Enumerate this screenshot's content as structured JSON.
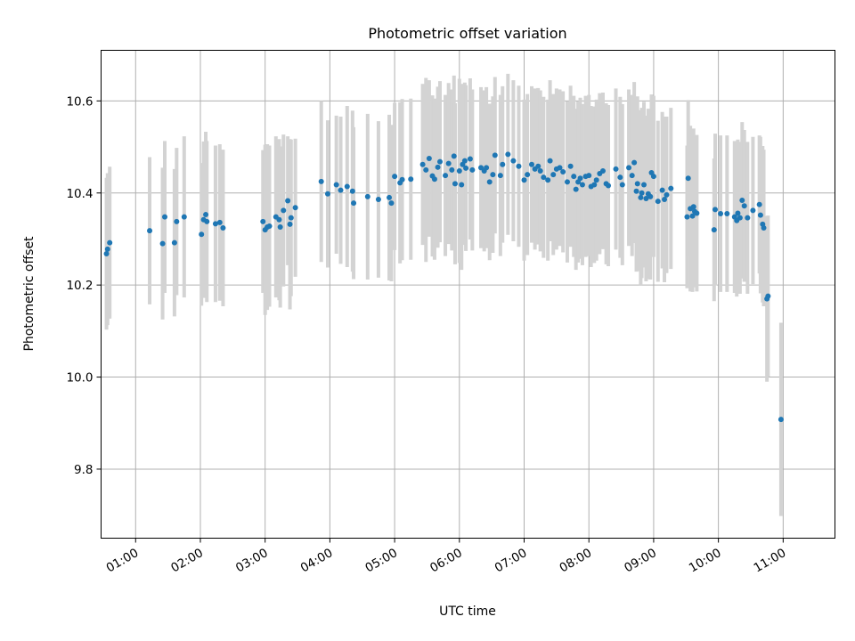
{
  "chart_data": {
    "type": "scatter",
    "title": "Photometric offset variation",
    "xlabel": "UTC time",
    "ylabel": "Photometric offset",
    "x_unit": "UTC hour",
    "xlim": [
      "00:28",
      "11:48"
    ],
    "ylim": [
      9.65,
      10.71
    ],
    "grid": true,
    "x_ticks": [
      "01:00",
      "02:00",
      "03:00",
      "04:00",
      "05:00",
      "06:00",
      "07:00",
      "08:00",
      "09:00",
      "10:00",
      "11:00"
    ],
    "y_ticks": [
      "9.8",
      "10.0",
      "10.2",
      "10.4",
      "10.6"
    ],
    "colors": {
      "point": "#1f77b4",
      "error_bar": "#d3d3d3",
      "grid": "#b0b0b0"
    },
    "points": [
      [
        "00:33",
        10.268,
        0.165
      ],
      [
        "00:34",
        10.278,
        0.165
      ],
      [
        "00:36",
        10.292,
        0.165
      ],
      [
        "01:13",
        10.318,
        0.16
      ],
      [
        "01:25",
        10.29,
        0.165
      ],
      [
        "01:27",
        10.348,
        0.165
      ],
      [
        "01:36",
        10.292,
        0.16
      ],
      [
        "01:38",
        10.338,
        0.16
      ],
      [
        "01:45",
        10.348,
        0.175
      ],
      [
        "02:01",
        10.31,
        0.155
      ],
      [
        "02:03",
        10.342,
        0.17
      ],
      [
        "02:05",
        10.353,
        0.18
      ],
      [
        "02:06",
        10.338,
        0.175
      ],
      [
        "02:14",
        10.333,
        0.17
      ],
      [
        "02:18",
        10.336,
        0.17
      ],
      [
        "02:21",
        10.324,
        0.17
      ],
      [
        "02:58",
        10.338,
        0.155
      ],
      [
        "03:00",
        10.32,
        0.185
      ],
      [
        "03:02",
        10.326,
        0.18
      ],
      [
        "03:04",
        10.328,
        0.175
      ],
      [
        "03:10",
        10.348,
        0.175
      ],
      [
        "03:13",
        10.342,
        0.175
      ],
      [
        "03:14",
        10.326,
        0.175
      ],
      [
        "03:17",
        10.362,
        0.165
      ],
      [
        "03:21",
        10.383,
        0.14
      ],
      [
        "03:23",
        10.332,
        0.185
      ],
      [
        "03:24",
        10.346,
        0.17
      ],
      [
        "03:28",
        10.368,
        0.15
      ],
      [
        "03:52",
        10.425,
        0.175
      ],
      [
        "03:58",
        10.398,
        0.16
      ],
      [
        "04:06",
        10.418,
        0.15
      ],
      [
        "04:10",
        10.406,
        0.16
      ],
      [
        "04:16",
        10.414,
        0.175
      ],
      [
        "04:21",
        10.404,
        0.175
      ],
      [
        "04:22",
        10.378,
        0.165
      ],
      [
        "04:35",
        10.392,
        0.18
      ],
      [
        "04:45",
        10.386,
        0.17
      ],
      [
        "04:55",
        10.39,
        0.18
      ],
      [
        "04:57",
        10.378,
        0.17
      ],
      [
        "05:00",
        10.436,
        0.16
      ],
      [
        "05:05",
        10.422,
        0.175
      ],
      [
        "05:07",
        10.429,
        0.175
      ],
      [
        "05:15",
        10.43,
        0.175
      ],
      [
        "05:26",
        10.462,
        0.175
      ],
      [
        "05:29",
        10.45,
        0.2
      ],
      [
        "05:32",
        10.475,
        0.17
      ],
      [
        "05:35",
        10.437,
        0.175
      ],
      [
        "05:37",
        10.43,
        0.175
      ],
      [
        "05:40",
        10.456,
        0.175
      ],
      [
        "05:42",
        10.468,
        0.175
      ],
      [
        "05:47",
        10.438,
        0.175
      ],
      [
        "05:50",
        10.464,
        0.175
      ],
      [
        "05:53",
        10.45,
        0.175
      ],
      [
        "05:55",
        10.48,
        0.175
      ],
      [
        "05:56",
        10.42,
        0.175
      ],
      [
        "06:00",
        10.448,
        0.2
      ],
      [
        "06:02",
        10.418,
        0.185
      ],
      [
        "06:03",
        10.462,
        0.175
      ],
      [
        "06:05",
        10.47,
        0.17
      ],
      [
        "06:06",
        10.454,
        0.18
      ],
      [
        "06:10",
        10.474,
        0.175
      ],
      [
        "06:12",
        10.45,
        0.175
      ],
      [
        "06:20",
        10.455,
        0.175
      ],
      [
        "06:23",
        10.448,
        0.175
      ],
      [
        "06:25",
        10.455,
        0.175
      ],
      [
        "06:28",
        10.424,
        0.17
      ],
      [
        "06:31",
        10.44,
        0.17
      ],
      [
        "06:33",
        10.482,
        0.17
      ],
      [
        "06:38",
        10.438,
        0.175
      ],
      [
        "06:40",
        10.462,
        0.17
      ],
      [
        "06:45",
        10.484,
        0.175
      ],
      [
        "06:50",
        10.47,
        0.175
      ],
      [
        "06:55",
        10.458,
        0.175
      ],
      [
        "07:00",
        10.428,
        0.175
      ],
      [
        "07:03",
        10.44,
        0.175
      ],
      [
        "07:07",
        10.462,
        0.17
      ],
      [
        "07:10",
        10.452,
        0.175
      ],
      [
        "07:13",
        10.458,
        0.17
      ],
      [
        "07:15",
        10.448,
        0.175
      ],
      [
        "07:18",
        10.434,
        0.175
      ],
      [
        "07:22",
        10.428,
        0.175
      ],
      [
        "07:24",
        10.47,
        0.175
      ],
      [
        "07:27",
        10.44,
        0.175
      ],
      [
        "07:30",
        10.452,
        0.175
      ],
      [
        "07:33",
        10.455,
        0.17
      ],
      [
        "07:36",
        10.446,
        0.175
      ],
      [
        "07:40",
        10.424,
        0.175
      ],
      [
        "07:43",
        10.458,
        0.175
      ],
      [
        "07:46",
        10.436,
        0.175
      ],
      [
        "07:48",
        10.408,
        0.175
      ],
      [
        "07:50",
        10.424,
        0.175
      ],
      [
        "07:52",
        10.432,
        0.175
      ],
      [
        "07:54",
        10.418,
        0.175
      ],
      [
        "07:57",
        10.436,
        0.175
      ],
      [
        "08:00",
        10.438,
        0.175
      ],
      [
        "08:02",
        10.414,
        0.175
      ],
      [
        "08:05",
        10.418,
        0.17
      ],
      [
        "08:07",
        10.428,
        0.175
      ],
      [
        "08:10",
        10.442,
        0.175
      ],
      [
        "08:13",
        10.448,
        0.17
      ],
      [
        "08:16",
        10.42,
        0.175
      ],
      [
        "08:18",
        10.416,
        0.175
      ],
      [
        "08:25",
        10.452,
        0.175
      ],
      [
        "08:29",
        10.434,
        0.175
      ],
      [
        "08:31",
        10.418,
        0.175
      ],
      [
        "08:37",
        10.455,
        0.17
      ],
      [
        "08:40",
        10.438,
        0.175
      ],
      [
        "08:42",
        10.466,
        0.175
      ],
      [
        "08:44",
        10.404,
        0.175
      ],
      [
        "08:45",
        10.42,
        0.19
      ],
      [
        "08:48",
        10.39,
        0.19
      ],
      [
        "08:49",
        10.4,
        0.185
      ],
      [
        "08:51",
        10.418,
        0.18
      ],
      [
        "08:53",
        10.388,
        0.18
      ],
      [
        "08:55",
        10.398,
        0.185
      ],
      [
        "08:57",
        10.392,
        0.18
      ],
      [
        "08:58",
        10.444,
        0.17
      ],
      [
        "09:00",
        10.436,
        0.175
      ],
      [
        "09:04",
        10.382,
        0.175
      ],
      [
        "09:08",
        10.406,
        0.17
      ],
      [
        "09:10",
        10.386,
        0.18
      ],
      [
        "09:12",
        10.396,
        0.17
      ],
      [
        "09:16",
        10.41,
        0.175
      ],
      [
        "09:31",
        10.348,
        0.155
      ],
      [
        "09:32",
        10.432,
        0.17
      ],
      [
        "09:34",
        10.366,
        0.18
      ],
      [
        "09:36",
        10.35,
        0.165
      ],
      [
        "09:37",
        10.37,
        0.17
      ],
      [
        "09:38",
        10.36,
        0.165
      ],
      [
        "09:40",
        10.356,
        0.17
      ],
      [
        "09:56",
        10.32,
        0.155
      ],
      [
        "09:57",
        10.364,
        0.165
      ],
      [
        "10:02",
        10.355,
        0.17
      ],
      [
        "10:08",
        10.355,
        0.17
      ],
      [
        "10:15",
        10.348,
        0.165
      ],
      [
        "10:17",
        10.34,
        0.165
      ],
      [
        "10:18",
        10.356,
        0.16
      ],
      [
        "10:20",
        10.346,
        0.165
      ],
      [
        "10:22",
        10.384,
        0.17
      ],
      [
        "10:24",
        10.372,
        0.165
      ],
      [
        "10:27",
        10.346,
        0.165
      ],
      [
        "10:32",
        10.362,
        0.16
      ],
      [
        "10:38",
        10.375,
        0.15
      ],
      [
        "10:39",
        10.352,
        0.17
      ],
      [
        "10:41",
        10.332,
        0.17
      ],
      [
        "10:42",
        10.324,
        0.17
      ],
      [
        "10:45",
        10.17,
        0.18
      ],
      [
        "10:46",
        10.176,
        0.175
      ],
      [
        "10:58",
        9.908,
        0.21
      ]
    ]
  }
}
